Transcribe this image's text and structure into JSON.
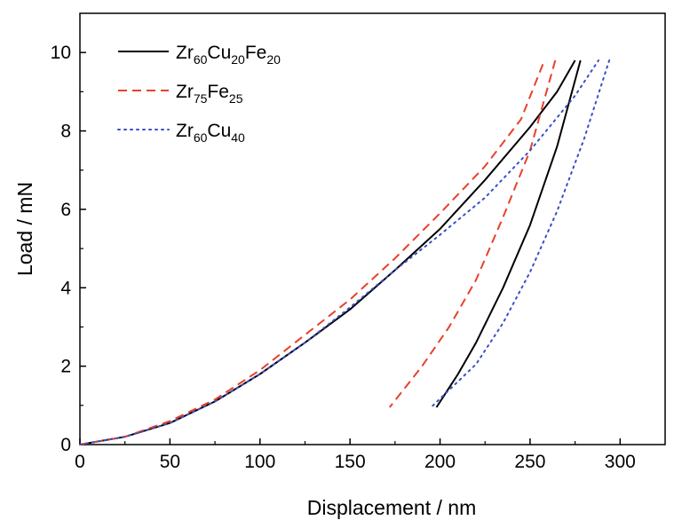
{
  "chart_data": {
    "type": "line",
    "title": "",
    "xlabel": "Displacement / nm",
    "ylabel": "Load / mN",
    "xlim": [
      0,
      325
    ],
    "ylim": [
      0,
      11
    ],
    "xticks": [
      0,
      50,
      100,
      150,
      200,
      250,
      300
    ],
    "yticks": [
      0,
      2,
      4,
      6,
      8,
      10
    ],
    "grid": false,
    "legend_position": "top-left",
    "series": [
      {
        "name": "Zr60Cu20Fe20",
        "legend_parts": [
          {
            "text": "Zr"
          },
          {
            "text": "60",
            "sub": true
          },
          {
            "text": "Cu"
          },
          {
            "text": "20",
            "sub": true
          },
          {
            "text": "Fe"
          },
          {
            "text": "20",
            "sub": true
          }
        ],
        "color": "#000000",
        "line_style": "solid",
        "loading": [
          [
            0,
            0
          ],
          [
            25,
            0.2
          ],
          [
            50,
            0.55
          ],
          [
            75,
            1.1
          ],
          [
            100,
            1.8
          ],
          [
            125,
            2.6
          ],
          [
            150,
            3.45
          ],
          [
            175,
            4.45
          ],
          [
            200,
            5.5
          ],
          [
            225,
            6.75
          ],
          [
            250,
            8.1
          ],
          [
            265,
            9.0
          ],
          [
            275,
            9.8
          ]
        ],
        "unloading": [
          [
            278,
            9.8
          ],
          [
            265,
            7.6
          ],
          [
            250,
            5.6
          ],
          [
            235,
            4.0
          ],
          [
            220,
            2.6
          ],
          [
            210,
            1.8
          ],
          [
            198,
            0.95
          ]
        ]
      },
      {
        "name": "Zr75Fe25",
        "legend_parts": [
          {
            "text": "Zr"
          },
          {
            "text": "75",
            "sub": true
          },
          {
            "text": "Fe"
          },
          {
            "text": "25",
            "sub": true
          }
        ],
        "color": "#e8402a",
        "line_style": "dashed",
        "loading": [
          [
            0,
            0
          ],
          [
            25,
            0.2
          ],
          [
            50,
            0.6
          ],
          [
            75,
            1.15
          ],
          [
            100,
            1.9
          ],
          [
            125,
            2.8
          ],
          [
            150,
            3.7
          ],
          [
            175,
            4.75
          ],
          [
            200,
            5.9
          ],
          [
            225,
            7.1
          ],
          [
            245,
            8.3
          ],
          [
            258,
            9.8
          ]
        ],
        "unloading": [
          [
            264,
            9.8
          ],
          [
            250,
            7.5
          ],
          [
            235,
            5.8
          ],
          [
            220,
            4.2
          ],
          [
            205,
            3.0
          ],
          [
            190,
            2.0
          ],
          [
            172,
            0.95
          ]
        ]
      },
      {
        "name": "Zr60Cu40",
        "legend_parts": [
          {
            "text": "Zr"
          },
          {
            "text": "60",
            "sub": true
          },
          {
            "text": "Cu"
          },
          {
            "text": "40",
            "sub": true
          }
        ],
        "color": "#3b4fc4",
        "line_style": "dotted",
        "loading": [
          [
            0,
            0
          ],
          [
            25,
            0.2
          ],
          [
            50,
            0.55
          ],
          [
            75,
            1.1
          ],
          [
            100,
            1.8
          ],
          [
            125,
            2.6
          ],
          [
            150,
            3.5
          ],
          [
            175,
            4.45
          ],
          [
            200,
            5.35
          ],
          [
            225,
            6.3
          ],
          [
            250,
            7.5
          ],
          [
            275,
            8.9
          ],
          [
            288,
            9.8
          ]
        ],
        "unloading": [
          [
            294,
            9.8
          ],
          [
            280,
            7.8
          ],
          [
            265,
            5.95
          ],
          [
            250,
            4.4
          ],
          [
            235,
            3.1
          ],
          [
            220,
            2.05
          ],
          [
            195,
            0.95
          ]
        ]
      }
    ]
  }
}
